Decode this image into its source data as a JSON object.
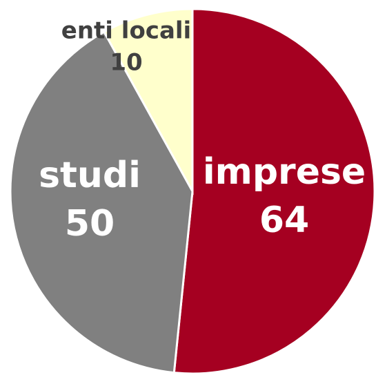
{
  "chart_data": {
    "type": "pie",
    "categories": [
      "imprese",
      "studi",
      "enti locali"
    ],
    "values": [
      64,
      50,
      10
    ],
    "colors": [
      "#a50021",
      "#808080",
      "#ffffcc"
    ],
    "label_colors": [
      "#ffffff",
      "#ffffff",
      "#404040"
    ]
  }
}
